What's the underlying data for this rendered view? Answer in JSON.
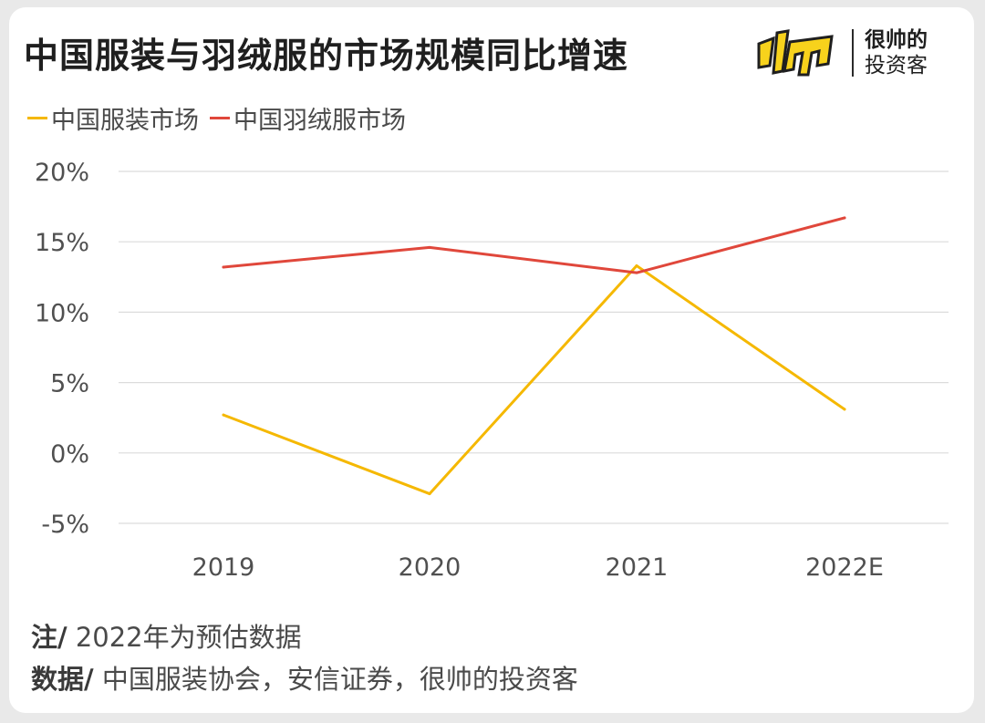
{
  "title": "中国服装与羽绒服的市场规模同比增速",
  "logo": {
    "line1": "很帅的",
    "line2": "投资客",
    "mark_icon": "yellow-shuai-logo-icon"
  },
  "notes": {
    "note_label": "注/",
    "note_text": "2022年为预估数据",
    "source_label": "数据/",
    "source_text": "中国服装协会，安信证券，很帅的投资客"
  },
  "chart_data": {
    "type": "line",
    "title": "中国服装与羽绒服的市场规模同比增速",
    "categories": [
      "2019",
      "2020",
      "2021",
      "2022E"
    ],
    "series": [
      {
        "name": "中国服装市场",
        "color": "#f5b800",
        "values": [
          2.7,
          -2.9,
          13.3,
          3.1
        ]
      },
      {
        "name": "中国羽绒服市场",
        "color": "#e0473b",
        "values": [
          13.2,
          14.6,
          12.8,
          16.7
        ]
      }
    ],
    "yticks": [
      "20%",
      "15%",
      "10%",
      "5%",
      "0%",
      "-5%"
    ],
    "ytick_values": [
      20,
      15,
      10,
      5,
      0,
      -5
    ],
    "ylim": [
      -5,
      20
    ],
    "grid": true,
    "legend_position": "top-left"
  }
}
